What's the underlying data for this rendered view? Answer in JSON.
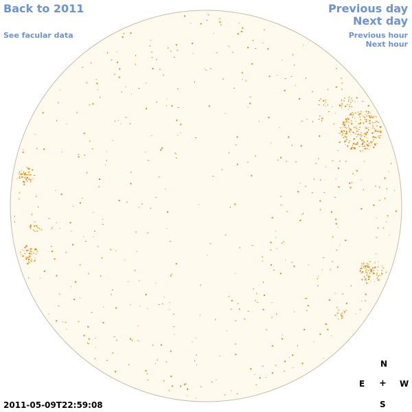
{
  "nav": {
    "back_label": "Back to 2011",
    "facular_label": "See facular data",
    "prev_day_label": "Previous day",
    "next_day_label": "Next day",
    "prev_hour_label": "Previous hour",
    "next_hour_label": "Next hour"
  },
  "compass": {
    "north": "N",
    "east": "E",
    "west": "W",
    "south": "S",
    "center": "+"
  },
  "timestamp": "2011-05-09T22:59:08",
  "colors": {
    "link": "#6b93d6",
    "disk_fill": "#fff9ee",
    "disk_edge": "#c9bba5",
    "feature": "#e58a0a"
  }
}
